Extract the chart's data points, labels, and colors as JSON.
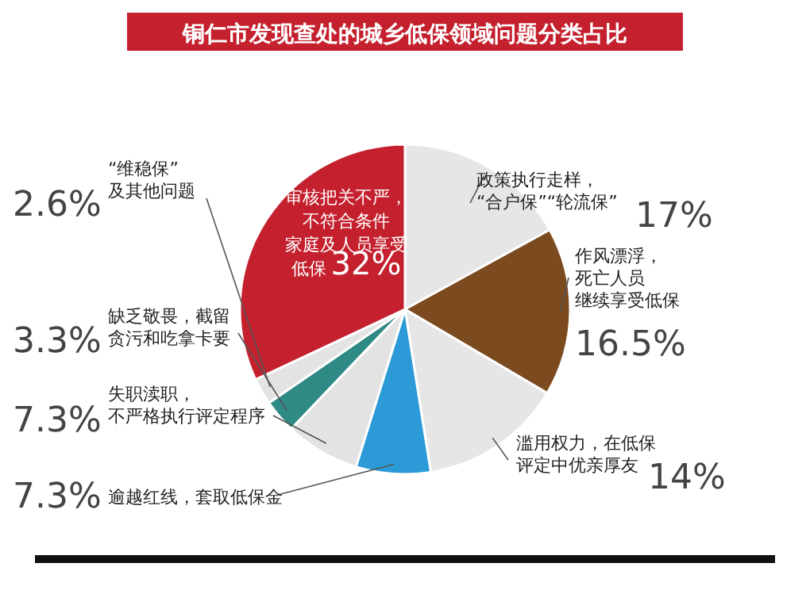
{
  "chart_data": {
    "type": "pie",
    "title": "铜仁市发现查处的城乡低保领域问题分类占比",
    "categories": [
      "政策执行走样，“合户保”“轮流保”",
      "作风漂浮，死亡人员继续享受低保",
      "滥用权力，在低保评定中优亲厚友",
      "逾越红线，套取低保金",
      "失职渎职，不严格执行评定程序",
      "缺乏敬畏，截留贪污和吃拿卡要",
      "“维稳保”及其他问题",
      "审核把关不严，不符合条件家庭及人员享受低保"
    ],
    "values": [
      17,
      16.5,
      14,
      7.3,
      7.3,
      3.3,
      2.6,
      32
    ],
    "value_labels": [
      "17%",
      "16.5%",
      "14%",
      "7.3%",
      "7.3%",
      "3.3%",
      "2.6%",
      "32%"
    ],
    "colors": [
      "#e6e6e6",
      "#7b4a1f",
      "#e6e6e6",
      "#2c9ad6",
      "#e3e3e3",
      "#2f8985",
      "#e3e3e3",
      "#c4202d"
    ]
  }
}
